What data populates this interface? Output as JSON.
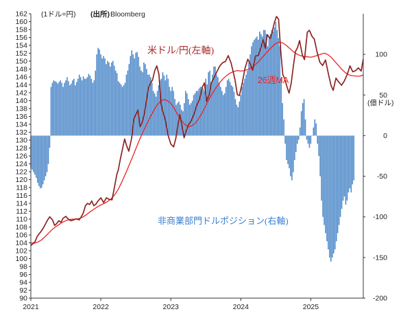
{
  "header": {
    "unit_note": "(1ドル=円)",
    "source_label": "(出所)",
    "source_name": "Bloomberg"
  },
  "chart_data": {
    "type": "line+bar",
    "x_ticks": [
      "2021",
      "2022",
      "2023",
      "2024",
      "2025"
    ],
    "xlim": [
      "2021-01",
      "2025-10"
    ],
    "left_axis": {
      "min": 90,
      "max": 162,
      "step": 2
    },
    "right_axis": {
      "label": "(億ドル)",
      "min": -200,
      "max": 150,
      "step": 50,
      "ticks": [
        "-200",
        "-150",
        "-100",
        "-50",
        "0",
        "50",
        "100"
      ]
    },
    "series": [
      {
        "name": "米ドル/円(左軸)",
        "axis": "left",
        "color": "#8b2323",
        "points": [
          [
            2021.0,
            103.3
          ],
          [
            2021.03,
            103.8
          ],
          [
            2021.06,
            104.3
          ],
          [
            2021.09,
            105.6
          ],
          [
            2021.12,
            106.3
          ],
          [
            2021.15,
            107.0
          ],
          [
            2021.18,
            107.8
          ],
          [
            2021.21,
            108.8
          ],
          [
            2021.24,
            109.8
          ],
          [
            2021.27,
            110.6
          ],
          [
            2021.31,
            109.8
          ],
          [
            2021.34,
            108.4
          ],
          [
            2021.37,
            108.9
          ],
          [
            2021.4,
            109.6
          ],
          [
            2021.43,
            109.2
          ],
          [
            2021.46,
            110.2
          ],
          [
            2021.5,
            110.7
          ],
          [
            2021.53,
            110.1
          ],
          [
            2021.57,
            109.6
          ],
          [
            2021.61,
            109.8
          ],
          [
            2021.65,
            110.1
          ],
          [
            2021.69,
            109.8
          ],
          [
            2021.72,
            110.6
          ],
          [
            2021.75,
            111.6
          ],
          [
            2021.78,
            113.4
          ],
          [
            2021.81,
            114.0
          ],
          [
            2021.84,
            113.7
          ],
          [
            2021.87,
            114.6
          ],
          [
            2021.9,
            113.4
          ],
          [
            2021.93,
            113.8
          ],
          [
            2021.96,
            114.6
          ],
          [
            2022.0,
            115.4
          ],
          [
            2022.04,
            114.2
          ],
          [
            2022.08,
            115.4
          ],
          [
            2022.12,
            115.0
          ],
          [
            2022.16,
            114.9
          ],
          [
            2022.2,
            118.6
          ],
          [
            2022.23,
            121.4
          ],
          [
            2022.25,
            122.5
          ],
          [
            2022.28,
            125.3
          ],
          [
            2022.31,
            127.8
          ],
          [
            2022.34,
            130.3
          ],
          [
            2022.37,
            128.5
          ],
          [
            2022.4,
            127.2
          ],
          [
            2022.44,
            130.5
          ],
          [
            2022.47,
            135.3
          ],
          [
            2022.5,
            136.5
          ],
          [
            2022.53,
            137.6
          ],
          [
            2022.56,
            133.4
          ],
          [
            2022.59,
            134.4
          ],
          [
            2022.62,
            136.5
          ],
          [
            2022.65,
            139.7
          ],
          [
            2022.68,
            143.2
          ],
          [
            2022.71,
            144.4
          ],
          [
            2022.74,
            145.3
          ],
          [
            2022.77,
            147.6
          ],
          [
            2022.8,
            148.8
          ],
          [
            2022.83,
            146.7
          ],
          [
            2022.86,
            139.3
          ],
          [
            2022.88,
            137.6
          ],
          [
            2022.92,
            135.2
          ],
          [
            2022.96,
            131.3
          ],
          [
            2023.0,
            129.0
          ],
          [
            2023.04,
            128.3
          ],
          [
            2023.07,
            130.3
          ],
          [
            2023.1,
            133.6
          ],
          [
            2023.13,
            136.5
          ],
          [
            2023.16,
            133.6
          ],
          [
            2023.19,
            130.6
          ],
          [
            2023.22,
            132.3
          ],
          [
            2023.25,
            133.8
          ],
          [
            2023.29,
            134.8
          ],
          [
            2023.33,
            136.5
          ],
          [
            2023.37,
            138.8
          ],
          [
            2023.41,
            140.3
          ],
          [
            2023.45,
            143.4
          ],
          [
            2023.48,
            144.5
          ],
          [
            2023.51,
            139.8
          ],
          [
            2023.55,
            141.6
          ],
          [
            2023.58,
            144.6
          ],
          [
            2023.62,
            145.9
          ],
          [
            2023.66,
            147.4
          ],
          [
            2023.7,
            148.8
          ],
          [
            2023.74,
            149.6
          ],
          [
            2023.78,
            149.9
          ],
          [
            2023.82,
            151.4
          ],
          [
            2023.86,
            149.6
          ],
          [
            2023.89,
            147.4
          ],
          [
            2023.92,
            145.0
          ],
          [
            2023.95,
            141.5
          ],
          [
            2023.98,
            141.3
          ],
          [
            2024.02,
            144.4
          ],
          [
            2024.06,
            148.2
          ],
          [
            2024.1,
            150.5
          ],
          [
            2024.13,
            149.5
          ],
          [
            2024.17,
            147.7
          ],
          [
            2024.21,
            151.3
          ],
          [
            2024.25,
            151.4
          ],
          [
            2024.29,
            153.5
          ],
          [
            2024.32,
            155.4
          ],
          [
            2024.35,
            153.2
          ],
          [
            2024.38,
            156.7
          ],
          [
            2024.42,
            155.7
          ],
          [
            2024.45,
            157.5
          ],
          [
            2024.48,
            159.8
          ],
          [
            2024.51,
            161.3
          ],
          [
            2024.54,
            160.6
          ],
          [
            2024.57,
            152.7
          ],
          [
            2024.6,
            146.6
          ],
          [
            2024.63,
            145.4
          ],
          [
            2024.66,
            143.5
          ],
          [
            2024.69,
            141.9
          ],
          [
            2024.72,
            144.4
          ],
          [
            2024.75,
            148.6
          ],
          [
            2024.78,
            152.4
          ],
          [
            2024.81,
            153.4
          ],
          [
            2024.84,
            155.2
          ],
          [
            2024.88,
            151.5
          ],
          [
            2024.91,
            150.4
          ],
          [
            2024.95,
            157.3
          ],
          [
            2024.98,
            157.8
          ],
          [
            2025.02,
            156.2
          ],
          [
            2025.05,
            155.6
          ],
          [
            2025.09,
            152.3
          ],
          [
            2025.13,
            149.7
          ],
          [
            2025.17,
            148.9
          ],
          [
            2025.21,
            150.3
          ],
          [
            2025.25,
            146.9
          ],
          [
            2025.29,
            143.8
          ],
          [
            2025.32,
            142.6
          ],
          [
            2025.36,
            145.7
          ],
          [
            2025.4,
            144.7
          ],
          [
            2025.44,
            143.9
          ],
          [
            2025.48,
            145.0
          ],
          [
            2025.52,
            146.6
          ],
          [
            2025.56,
            148.8
          ],
          [
            2025.6,
            147.3
          ],
          [
            2025.64,
            147.6
          ],
          [
            2025.68,
            148.3
          ],
          [
            2025.72,
            147.5
          ],
          [
            2025.75,
            150.5
          ]
        ]
      },
      {
        "name": "26週MA",
        "axis": "left",
        "color": "#ee2222",
        "points": [
          [
            2021.0,
            104.0
          ],
          [
            2021.05,
            103.9
          ],
          [
            2021.1,
            104.2
          ],
          [
            2021.15,
            104.7
          ],
          [
            2021.2,
            105.5
          ],
          [
            2021.25,
            106.4
          ],
          [
            2021.3,
            107.3
          ],
          [
            2021.35,
            108.0
          ],
          [
            2021.4,
            108.6
          ],
          [
            2021.45,
            109.2
          ],
          [
            2021.5,
            109.6
          ],
          [
            2021.55,
            109.9
          ],
          [
            2021.6,
            110.0
          ],
          [
            2021.65,
            110.0
          ],
          [
            2021.7,
            110.2
          ],
          [
            2021.75,
            110.6
          ],
          [
            2021.8,
            111.2
          ],
          [
            2021.85,
            111.9
          ],
          [
            2021.9,
            112.5
          ],
          [
            2021.95,
            113.1
          ],
          [
            2022.0,
            113.6
          ],
          [
            2022.05,
            114.0
          ],
          [
            2022.1,
            114.5
          ],
          [
            2022.15,
            115.2
          ],
          [
            2022.2,
            116.2
          ],
          [
            2022.25,
            117.6
          ],
          [
            2022.3,
            119.4
          ],
          [
            2022.35,
            121.4
          ],
          [
            2022.4,
            123.5
          ],
          [
            2022.45,
            125.6
          ],
          [
            2022.5,
            127.8
          ],
          [
            2022.55,
            130.0
          ],
          [
            2022.6,
            132.0
          ],
          [
            2022.65,
            133.8
          ],
          [
            2022.7,
            135.6
          ],
          [
            2022.75,
            137.3
          ],
          [
            2022.8,
            138.8
          ],
          [
            2022.85,
            139.8
          ],
          [
            2022.9,
            140.3
          ],
          [
            2022.95,
            140.0
          ],
          [
            2023.0,
            139.3
          ],
          [
            2023.05,
            138.0
          ],
          [
            2023.1,
            136.4
          ],
          [
            2023.15,
            135.0
          ],
          [
            2023.2,
            134.0
          ],
          [
            2023.25,
            133.4
          ],
          [
            2023.3,
            133.6
          ],
          [
            2023.35,
            134.3
          ],
          [
            2023.4,
            135.5
          ],
          [
            2023.45,
            137.0
          ],
          [
            2023.5,
            138.8
          ],
          [
            2023.55,
            140.5
          ],
          [
            2023.6,
            142.0
          ],
          [
            2023.65,
            143.4
          ],
          [
            2023.7,
            144.6
          ],
          [
            2023.75,
            145.6
          ],
          [
            2023.8,
            146.4
          ],
          [
            2023.85,
            147.0
          ],
          [
            2023.9,
            147.4
          ],
          [
            2023.95,
            147.6
          ],
          [
            2024.0,
            147.5
          ],
          [
            2024.05,
            147.6
          ],
          [
            2024.1,
            147.9
          ],
          [
            2024.15,
            148.3
          ],
          [
            2024.2,
            149.0
          ],
          [
            2024.25,
            149.8
          ],
          [
            2024.3,
            150.8
          ],
          [
            2024.35,
            151.8
          ],
          [
            2024.4,
            152.8
          ],
          [
            2024.45,
            153.7
          ],
          [
            2024.5,
            154.5
          ],
          [
            2024.55,
            154.8
          ],
          [
            2024.6,
            154.6
          ],
          [
            2024.65,
            154.0
          ],
          [
            2024.7,
            153.2
          ],
          [
            2024.75,
            152.4
          ],
          [
            2024.8,
            151.8
          ],
          [
            2024.85,
            151.4
          ],
          [
            2024.9,
            151.2
          ],
          [
            2024.95,
            151.1
          ],
          [
            2025.0,
            151.0
          ],
          [
            2025.05,
            151.2
          ],
          [
            2025.1,
            151.5
          ],
          [
            2025.15,
            151.8
          ],
          [
            2025.2,
            152.0
          ],
          [
            2025.25,
            151.6
          ],
          [
            2025.3,
            150.8
          ],
          [
            2025.35,
            149.8
          ],
          [
            2025.4,
            148.8
          ],
          [
            2025.45,
            147.8
          ],
          [
            2025.5,
            147.0
          ],
          [
            2025.55,
            146.5
          ],
          [
            2025.6,
            146.3
          ],
          [
            2025.65,
            146.2
          ],
          [
            2025.7,
            146.2
          ],
          [
            2025.75,
            146.5
          ]
        ]
      },
      {
        "name": "非商業部門ドルポジション(右軸)",
        "axis": "right",
        "type": "bar",
        "color": "#4a86c8",
        "start": 2021.0,
        "step": 0.01923,
        "values": [
          -40,
          -42,
          -45,
          -48,
          -52,
          -58,
          -62,
          -65,
          -64,
          -60,
          -55,
          -50,
          -45,
          -35,
          -15,
          60,
          65,
          68,
          67,
          66,
          64,
          66,
          68,
          65,
          60,
          65,
          68,
          72,
          67,
          62,
          64,
          68,
          70,
          62,
          66,
          70,
          75,
          72,
          68,
          73,
          70,
          70,
          72,
          76,
          74,
          70,
          65,
          68,
          80,
          100,
          108,
          106,
          100,
          95,
          98,
          95,
          88,
          92,
          90,
          85,
          90,
          92,
          86,
          80,
          77,
          67,
          65,
          63,
          60,
          62,
          65,
          75,
          80,
          88,
          98,
          105,
          100,
          95,
          102,
          103,
          97,
          85,
          80,
          78,
          90,
          88,
          82,
          75,
          75,
          72,
          65,
          55,
          52,
          48,
          55,
          62,
          68,
          70,
          78,
          74,
          68,
          75,
          70,
          60,
          55,
          60,
          55,
          45,
          38,
          40,
          42,
          38,
          32,
          30,
          40,
          55,
          52,
          45,
          38,
          40,
          43,
          50,
          52,
          55,
          55,
          58,
          60,
          60,
          58,
          55,
          70,
          63,
          78,
          80,
          65,
          75,
          85,
          85,
          75,
          72,
          65,
          60,
          55,
          50,
          52,
          60,
          68,
          70,
          66,
          62,
          60,
          54,
          45,
          38,
          35,
          42,
          50,
          60,
          65,
          70,
          75,
          80,
          90,
          100,
          110,
          115,
          118,
          120,
          122,
          118,
          128,
          125,
          122,
          130,
          130,
          125,
          110,
          120,
          125,
          130,
          128,
          133,
          140,
          130,
          120,
          110,
          70,
          40,
          20,
          -10,
          -30,
          -35,
          -40,
          -50,
          -55,
          -45,
          -30,
          -20,
          -10,
          -5,
          10,
          30,
          40,
          45,
          20,
          -5,
          -10,
          -15,
          -10,
          0,
          10,
          20,
          15,
          -10,
          -25,
          -50,
          -80,
          -100,
          -110,
          -120,
          -130,
          -140,
          -150,
          -155,
          -150,
          -145,
          -140,
          -130,
          -120,
          -110,
          -100,
          -90,
          -80,
          -75,
          -85,
          -80,
          -70,
          -65,
          -70,
          -60,
          -55
        ]
      }
    ]
  }
}
